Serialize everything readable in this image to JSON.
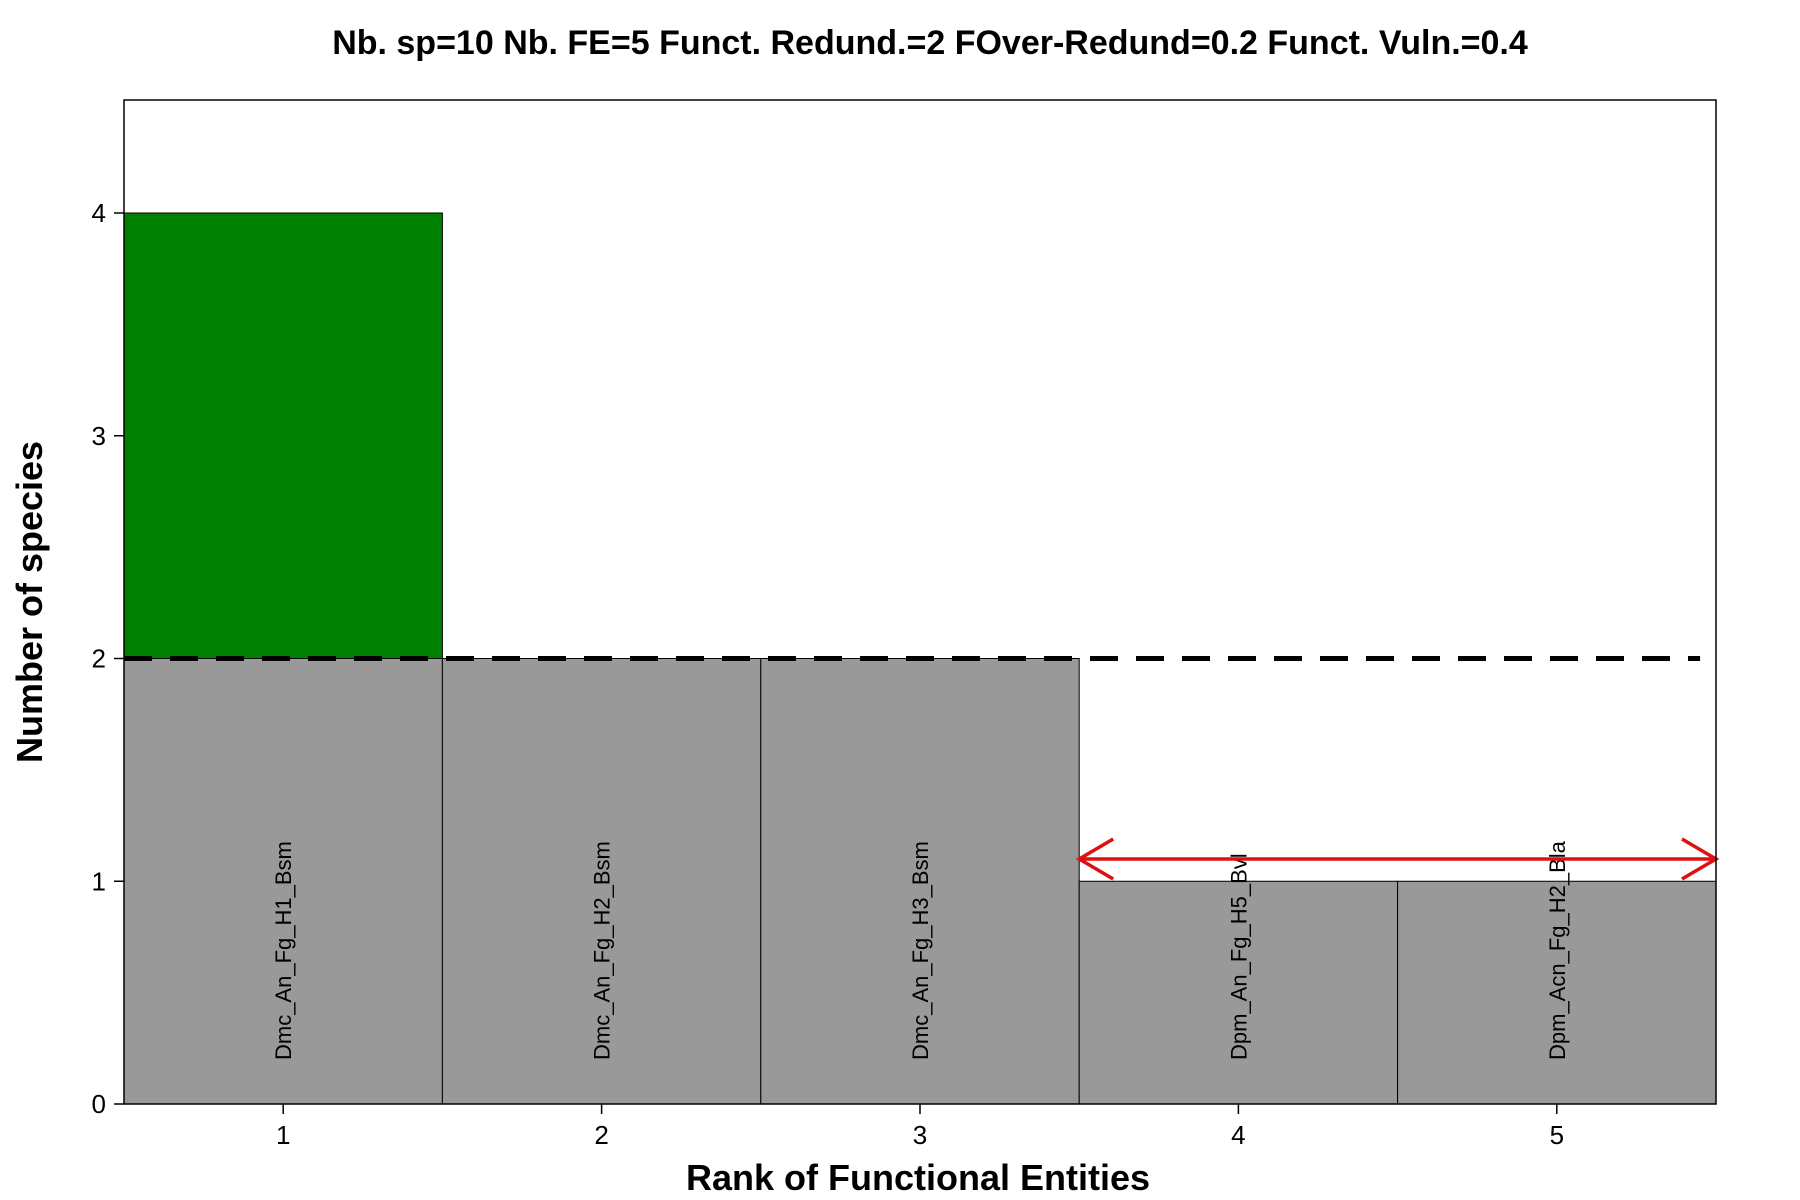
{
  "chart_data": {
    "type": "bar",
    "title": "Nb. sp=10  Nb. FE=5  Funct. Redund.=2  FOver-Redund=0.2  Funct. Vuln.=0.4",
    "xlabel": "Rank of Functional Entities",
    "ylabel": "Number of species",
    "categories": [
      "1",
      "2",
      "3",
      "4",
      "5"
    ],
    "values": [
      4,
      2,
      2,
      1,
      1
    ],
    "bar_labels": [
      "Dmc_An_Fg_H1_Bsm",
      "Dmc_An_Fg_H2_Bsm",
      "Dmc_An_Fg_H3_Bsm",
      "Dpm_An_Fg_H5_Bvl",
      "Dpm_Acn_Fg_H2_Bla"
    ],
    "xlim": [
      0.5,
      5.5
    ],
    "ylim": [
      0,
      4.5
    ],
    "yticks": [
      0,
      1,
      2,
      3,
      4
    ],
    "redundancy_level": 2,
    "vulnerable_range": [
      3.5,
      5.5
    ],
    "vulnerable_arrow_y": 1.1,
    "colors": {
      "bar": "#999999",
      "over_redundant": "#008000",
      "vulnerability_arrow": "#dd1111",
      "redundancy_line": "#000000"
    }
  }
}
